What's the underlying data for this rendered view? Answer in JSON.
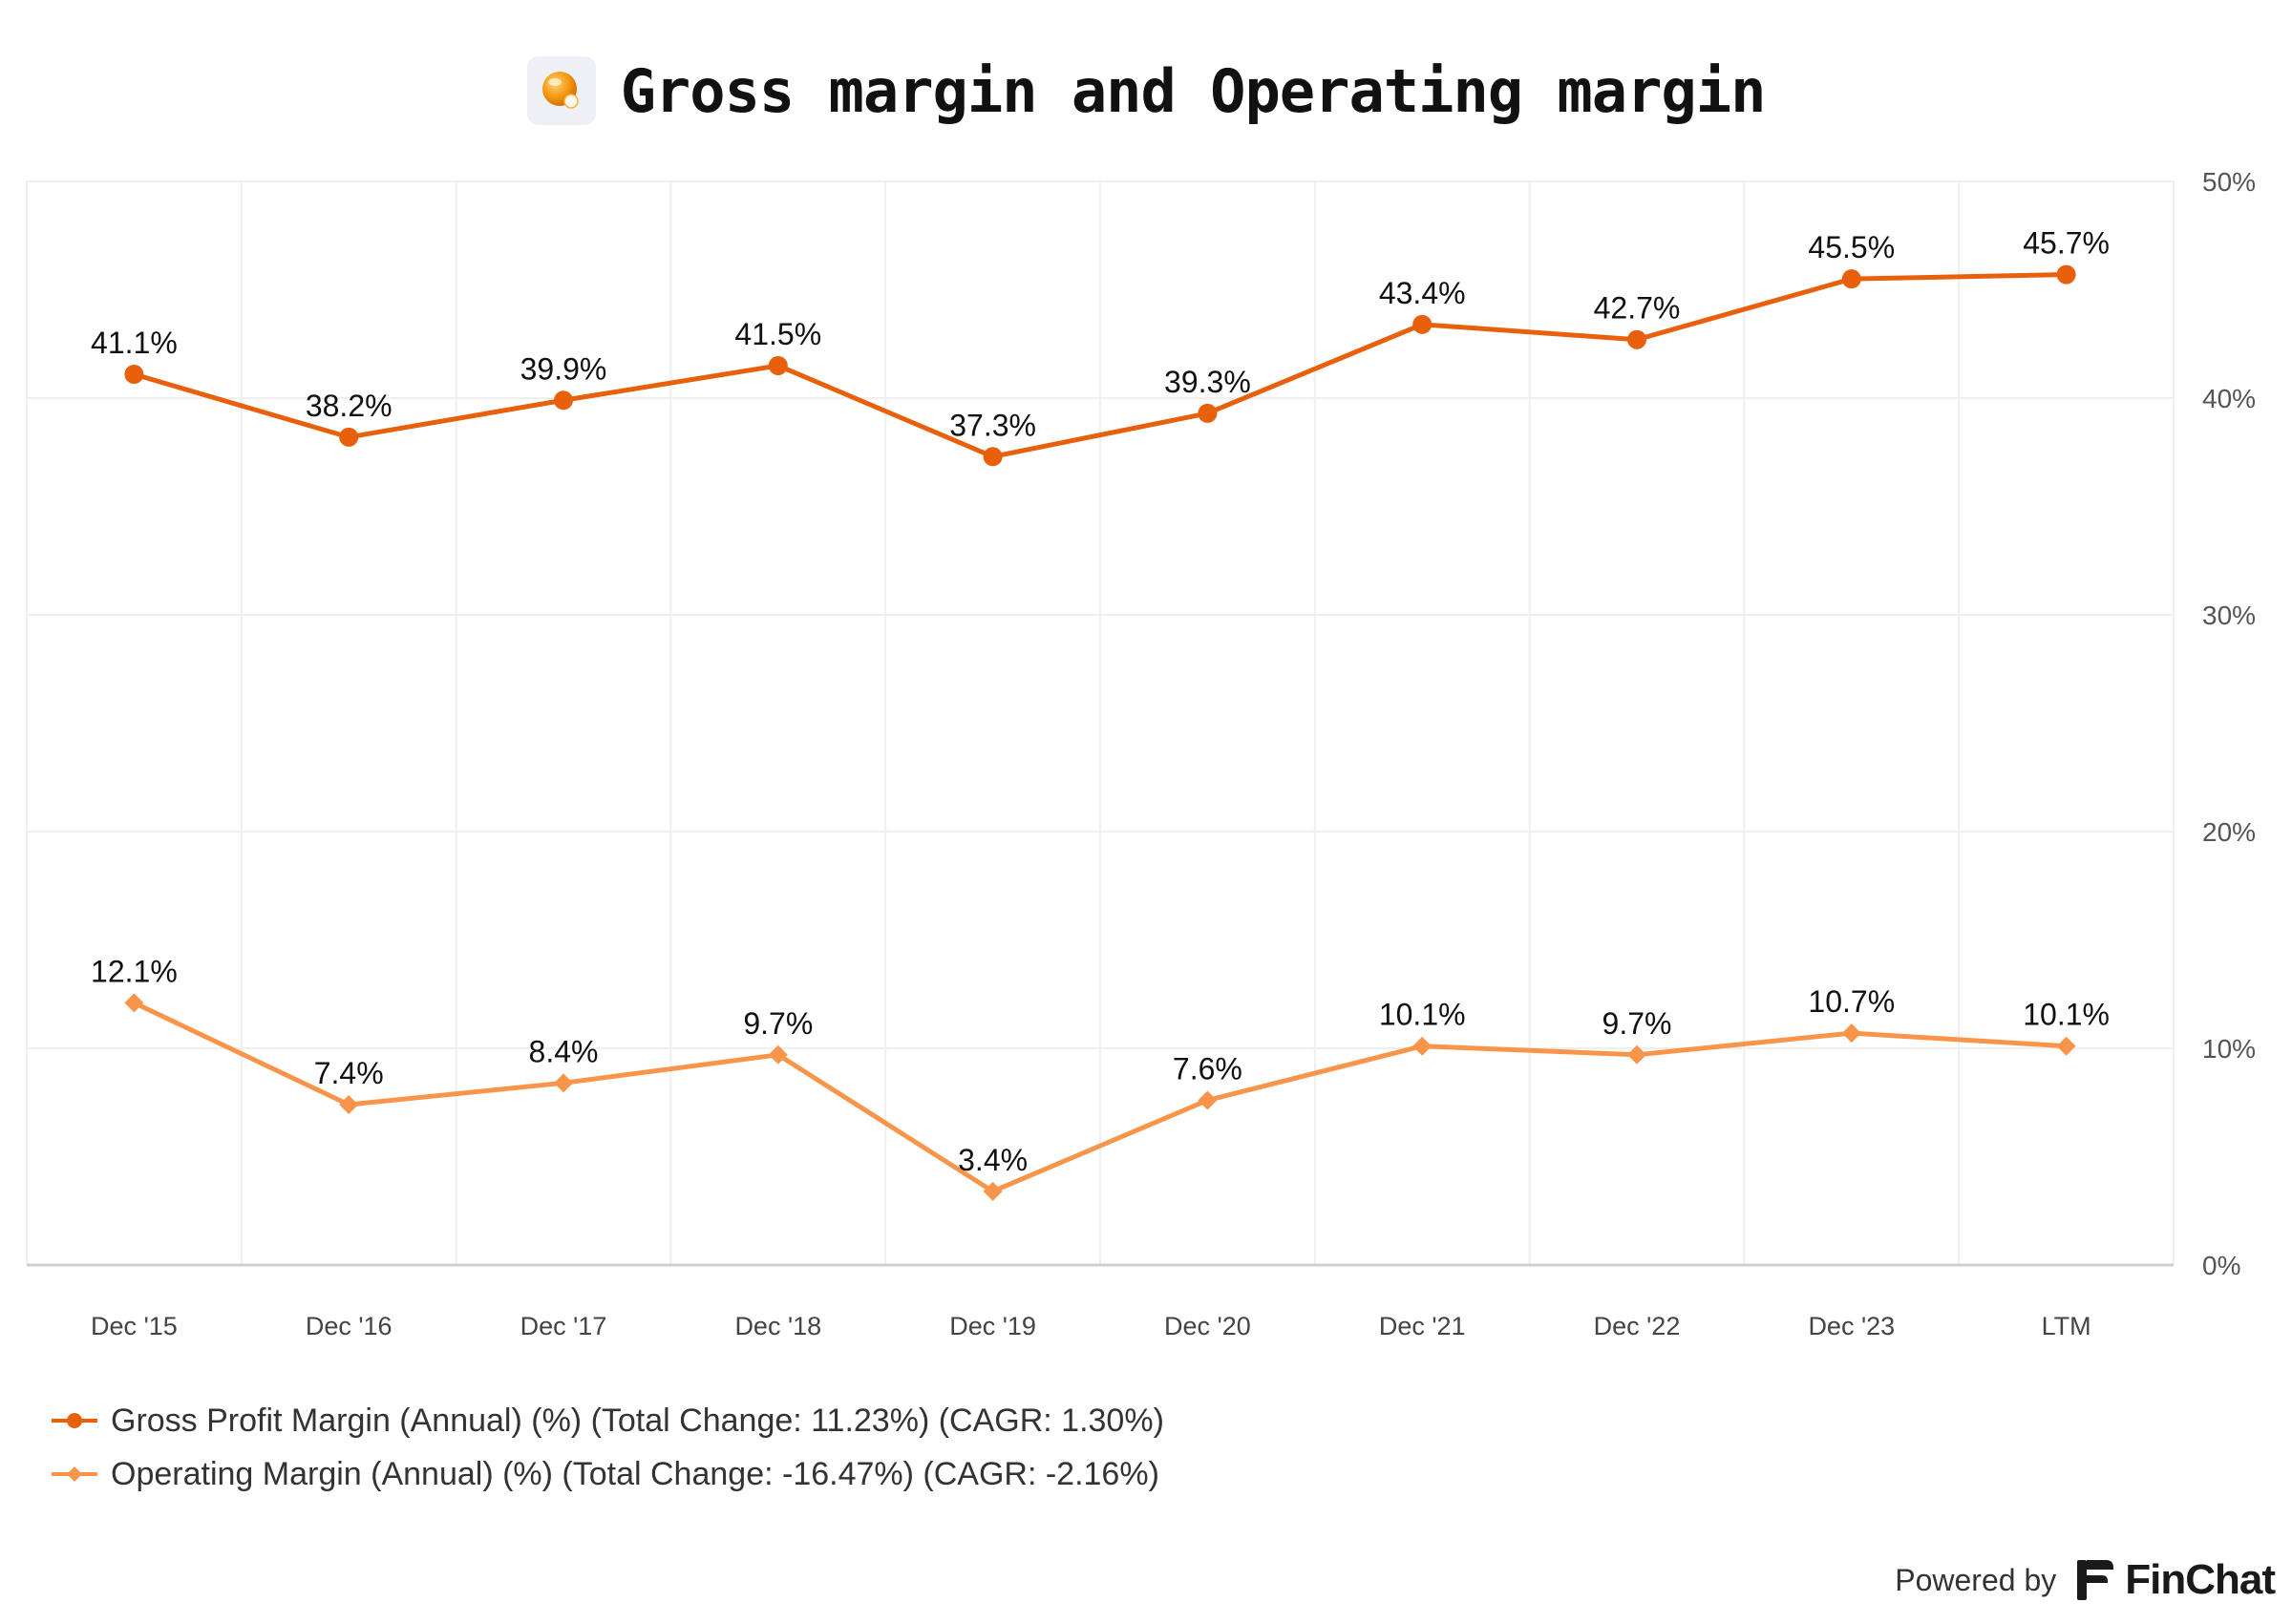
{
  "header": {
    "title": "Gross margin and Operating margin",
    "icon": "orange-sphere-icon"
  },
  "chart_data": {
    "type": "line",
    "categories": [
      "Dec '15",
      "Dec '16",
      "Dec '17",
      "Dec '18",
      "Dec '19",
      "Dec '20",
      "Dec '21",
      "Dec '22",
      "Dec '23",
      "LTM"
    ],
    "series": [
      {
        "name": "Gross Profit Margin (Annual) (%) (Total Change: 11.23%) (CAGR: 1.30%)",
        "values": [
          41.1,
          38.2,
          39.9,
          41.5,
          37.3,
          39.3,
          43.4,
          42.7,
          45.5,
          45.7
        ],
        "labels": [
          "41.1%",
          "38.2%",
          "39.9%",
          "41.5%",
          "37.3%",
          "39.3%",
          "43.4%",
          "42.7%",
          "45.5%",
          "45.7%"
        ],
        "color": "#e8600c",
        "marker": "circle"
      },
      {
        "name": "Operating Margin (Annual) (%) (Total Change: -16.47%) (CAGR: -2.16%)",
        "values": [
          12.1,
          7.4,
          8.4,
          9.7,
          3.4,
          7.6,
          10.1,
          9.7,
          10.7,
          10.1
        ],
        "labels": [
          "12.1%",
          "7.4%",
          "8.4%",
          "9.7%",
          "3.4%",
          "7.6%",
          "10.1%",
          "9.7%",
          "10.7%",
          "10.1%"
        ],
        "color": "#f8954a",
        "marker": "diamond"
      }
    ],
    "y_ticks": [
      "0%",
      "10%",
      "20%",
      "30%",
      "40%",
      "50%"
    ],
    "ylim": [
      0,
      50
    ],
    "y_axis_side": "right",
    "grid": true,
    "legend_placement": "bottom-left"
  },
  "footer": {
    "powered_by": "Powered by",
    "brand": "FinChat",
    "brand_icon": "finchat-logo-icon"
  }
}
